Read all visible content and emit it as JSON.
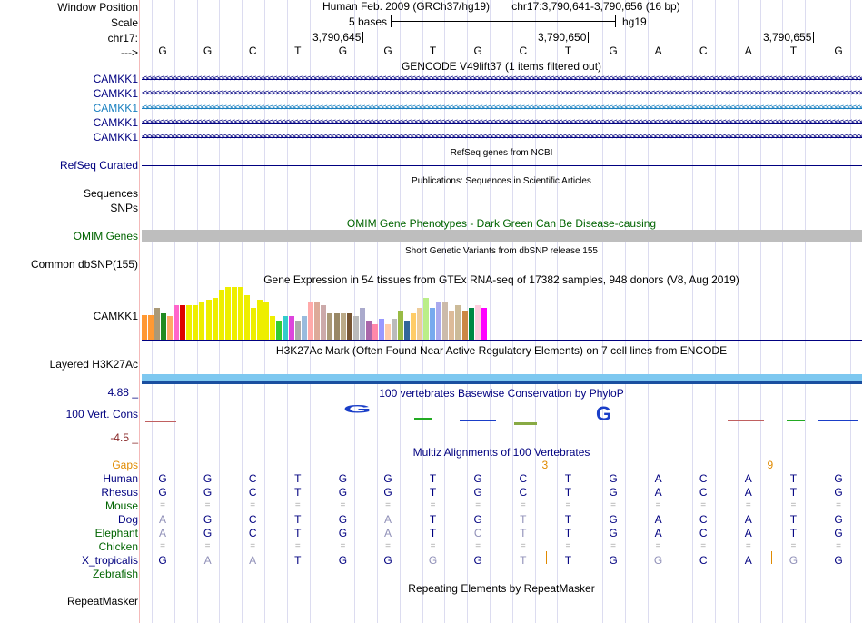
{
  "header": {
    "window_position_label": "Window Position",
    "scale_label": "Scale",
    "chrom_label": "chr17:",
    "arrow_label": "--->",
    "assembly_title": "Human Feb. 2009 (GRCh37/hg19)",
    "position_text": "chr17:3,790,641-3,790,656 (16 bp)",
    "scale_text": "5 bases",
    "scale_db": "hg19",
    "coords": [
      "3,790,645",
      "3,790,650",
      "3,790,655"
    ],
    "sequence": [
      "G",
      "G",
      "C",
      "T",
      "G",
      "G",
      "T",
      "G",
      "C",
      "T",
      "G",
      "A",
      "C",
      "A",
      "T",
      "G"
    ]
  },
  "gencode": {
    "title": "GENCODE V49lift37 (1 items filtered out)",
    "labels": [
      "CAMKK1",
      "CAMKK1",
      "CAMKK1",
      "CAMKK1",
      "CAMKK1"
    ],
    "highlight_color": "#1a80c0",
    "default_color": "#000080"
  },
  "refseq": {
    "title": "RefSeq genes from NCBI",
    "label": "RefSeq Curated"
  },
  "publications": {
    "title": "Publications: Sequences in Scientific Articles",
    "label_sequences": "Sequences",
    "label_snps": "SNPs"
  },
  "omim": {
    "title": "OMIM Gene Phenotypes - Dark Green Can Be Disease-causing",
    "label": "OMIM Genes"
  },
  "dbsnp": {
    "title": "Short Genetic Variants from dbSNP release 155",
    "label": "Common dbSNP(155)"
  },
  "gtex": {
    "title": "Gene Expression in 54 tissues from GTEx RNA-seq of 17382 samples, 948 donors (V8, Aug 2019)",
    "label": "CAMKK1",
    "bars": [
      {
        "h": 0.47,
        "c": "#ff9933"
      },
      {
        "h": 0.47,
        "c": "#ff9933"
      },
      {
        "h": 0.6,
        "c": "#aa9977"
      },
      {
        "h": 0.5,
        "c": "#228b22"
      },
      {
        "h": 0.45,
        "c": "#ffaa66"
      },
      {
        "h": 0.65,
        "c": "#ff66cc"
      },
      {
        "h": 0.65,
        "c": "#dd0000"
      },
      {
        "h": 0.65,
        "c": "#eeee00"
      },
      {
        "h": 0.65,
        "c": "#eeee00"
      },
      {
        "h": 0.7,
        "c": "#eeee00"
      },
      {
        "h": 0.75,
        "c": "#eeee00"
      },
      {
        "h": 0.8,
        "c": "#eeee00"
      },
      {
        "h": 0.95,
        "c": "#eeee00"
      },
      {
        "h": 1.0,
        "c": "#eeee00"
      },
      {
        "h": 1.0,
        "c": "#eeee00"
      },
      {
        "h": 1.0,
        "c": "#eeee00"
      },
      {
        "h": 0.85,
        "c": "#eeee00"
      },
      {
        "h": 0.6,
        "c": "#eeee00"
      },
      {
        "h": 0.75,
        "c": "#eeee00"
      },
      {
        "h": 0.7,
        "c": "#eeee00"
      },
      {
        "h": 0.45,
        "c": "#eeee00"
      },
      {
        "h": 0.35,
        "c": "#33cc33"
      },
      {
        "h": 0.45,
        "c": "#33cccc"
      },
      {
        "h": 0.45,
        "c": "#dd44dd"
      },
      {
        "h": 0.35,
        "c": "#aaaaaa"
      },
      {
        "h": 0.45,
        "c": "#99bbdd"
      },
      {
        "h": 0.7,
        "c": "#ffaaaa"
      },
      {
        "h": 0.7,
        "c": "#ddaa99"
      },
      {
        "h": 0.65,
        "c": "#ccaaaa"
      },
      {
        "h": 0.5,
        "c": "#aa9977"
      },
      {
        "h": 0.5,
        "c": "#998866"
      },
      {
        "h": 0.5,
        "c": "#bbaa88"
      },
      {
        "h": 0.5,
        "c": "#775533"
      },
      {
        "h": 0.45,
        "c": "#bbbbbb"
      },
      {
        "h": 0.6,
        "c": "#aaaacc"
      },
      {
        "h": 0.35,
        "c": "#aa66aa"
      },
      {
        "h": 0.3,
        "c": "#ff88aa"
      },
      {
        "h": 0.4,
        "c": "#9999ff"
      },
      {
        "h": 0.3,
        "c": "#ffccaa"
      },
      {
        "h": 0.4,
        "c": "#bbbbbb"
      },
      {
        "h": 0.55,
        "c": "#99bb44"
      },
      {
        "h": 0.35,
        "c": "#336699"
      },
      {
        "h": 0.5,
        "c": "#ffcc66"
      },
      {
        "h": 0.6,
        "c": "#eecc99"
      },
      {
        "h": 0.8,
        "c": "#bbee88"
      },
      {
        "h": 0.6,
        "c": "#77aaee"
      },
      {
        "h": 0.7,
        "c": "#aaaaee"
      },
      {
        "h": 0.7,
        "c": "#ccbbaa"
      },
      {
        "h": 0.55,
        "c": "#ddbb99"
      },
      {
        "h": 0.65,
        "c": "#ccbb99"
      },
      {
        "h": 0.55,
        "c": "#cc8844"
      },
      {
        "h": 0.6,
        "c": "#008844"
      },
      {
        "h": 0.65,
        "c": "#ffccdd"
      },
      {
        "h": 0.6,
        "c": "#ff00ff"
      }
    ]
  },
  "h3k27ac": {
    "title": "H3K27Ac Mark (Often Found Near Active Regulatory Elements) on 7 cell lines from ENCODE",
    "label": "Layered H3K27Ac"
  },
  "phylop": {
    "title": "100 vertebrates Basewise Conservation by PhyloP",
    "label": "100 Vert. Cons",
    "max_label": "4.88 _",
    "min_label": "-4.5 _"
  },
  "multiz": {
    "title": "Multiz Alignments of 100 Vertebrates",
    "gaps_label": "Gaps",
    "gap_counts": [
      {
        "pos": 8,
        "text": "3"
      },
      {
        "pos": 13,
        "text": "9"
      }
    ],
    "species": [
      {
        "name": "Human",
        "color": "#000080",
        "bases": [
          "G",
          "G",
          "C",
          "T",
          "G",
          "G",
          "T",
          "G",
          "C",
          "T",
          "G",
          "A",
          "C",
          "A",
          "T",
          "G"
        ],
        "dim": []
      },
      {
        "name": "Rhesus",
        "color": "#000080",
        "bases": [
          "G",
          "G",
          "C",
          "T",
          "G",
          "G",
          "T",
          "G",
          "C",
          "T",
          "G",
          "A",
          "C",
          "A",
          "T",
          "G"
        ],
        "dim": []
      },
      {
        "name": "Mouse",
        "color": "#006400",
        "bases": [
          "=",
          "=",
          "=",
          "=",
          "=",
          "=",
          "=",
          "=",
          "=",
          "=",
          "=",
          "=",
          "=",
          "=",
          "=",
          "="
        ],
        "dim": []
      },
      {
        "name": "Dog",
        "color": "#000080",
        "bases": [
          "A",
          "G",
          "C",
          "T",
          "G",
          "A",
          "T",
          "G",
          "T",
          "T",
          "G",
          "A",
          "C",
          "A",
          "T",
          "G"
        ],
        "dim": [
          0,
          5,
          8
        ]
      },
      {
        "name": "Elephant",
        "color": "#006400",
        "bases": [
          "A",
          "G",
          "C",
          "T",
          "G",
          "A",
          "T",
          "C",
          "T",
          "T",
          "G",
          "A",
          "C",
          "A",
          "T",
          "G"
        ],
        "dim": [
          0,
          5,
          7,
          8
        ]
      },
      {
        "name": "Chicken",
        "color": "#006400",
        "bases": [
          "=",
          "=",
          "=",
          "=",
          "=",
          "=",
          "=",
          "=",
          "=",
          "=",
          "=",
          "=",
          "=",
          "=",
          "=",
          "="
        ],
        "dim": []
      },
      {
        "name": "X_tropicalis",
        "color": "#000080",
        "bases": [
          "G",
          "A",
          "A",
          "T",
          "G",
          "G",
          "G",
          "G",
          "T",
          "T",
          "G",
          "G",
          "C",
          "A",
          "G",
          "G"
        ],
        "dim": [
          1,
          2,
          6,
          8,
          11,
          14
        ]
      },
      {
        "name": "Zebrafish",
        "color": "#006400",
        "bases": [
          "",
          "",
          "",
          "",
          "",
          "",
          "",
          "",
          "",
          "",
          "",
          "",
          "",
          "",
          "",
          ""
        ],
        "dim": []
      }
    ]
  },
  "repeatmasker": {
    "title": "Repeating Elements by RepeatMasker",
    "label": "RepeatMasker"
  }
}
